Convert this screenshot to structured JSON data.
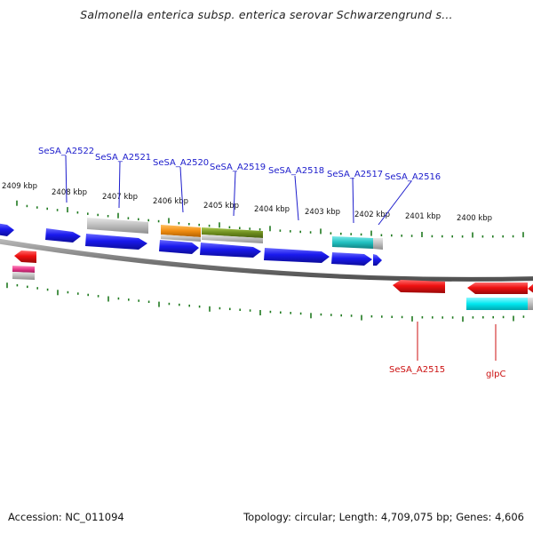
{
  "title": "Salmonella enterica subsp. enterica serovar Schwarzengrund s...",
  "footer": {
    "accession": "Accession: NC_011094",
    "summary": "Topology: circular; Length: 4,709,075 bp; Genes: 4,606"
  },
  "scale_labels": [
    "2409 kbp",
    "2408 kbp",
    "2407 kbp",
    "2406 kbp",
    "2405 kbp",
    "2404 kbp",
    "2403 kbp",
    "2402 kbp",
    "2401 kbp",
    "2400 kbp"
  ],
  "genes_forward": [
    "SeSA_A2522",
    "SeSA_A2521",
    "SeSA_A2520",
    "SeSA_A2519",
    "SeSA_A2518",
    "SeSA_A2517",
    "SeSA_A2516"
  ],
  "genes_reverse": [
    "SeSA_A2515",
    "glpC"
  ],
  "colors": {
    "forward_gene": "#1a1aee",
    "reverse_gene": "#ee1111",
    "forward_label": "#1c1ccc",
    "reverse_label": "#cc1111",
    "tick": "#1f7a1f",
    "backbone": "#888888",
    "grey_feature": "#b8b8b8",
    "orange_feature": "#f08c10",
    "olive_feature": "#6e8e1e",
    "teal_feature": "#20c0c0",
    "cyan_feature": "#00e8f0",
    "pink_feature": "#e83a8a"
  }
}
